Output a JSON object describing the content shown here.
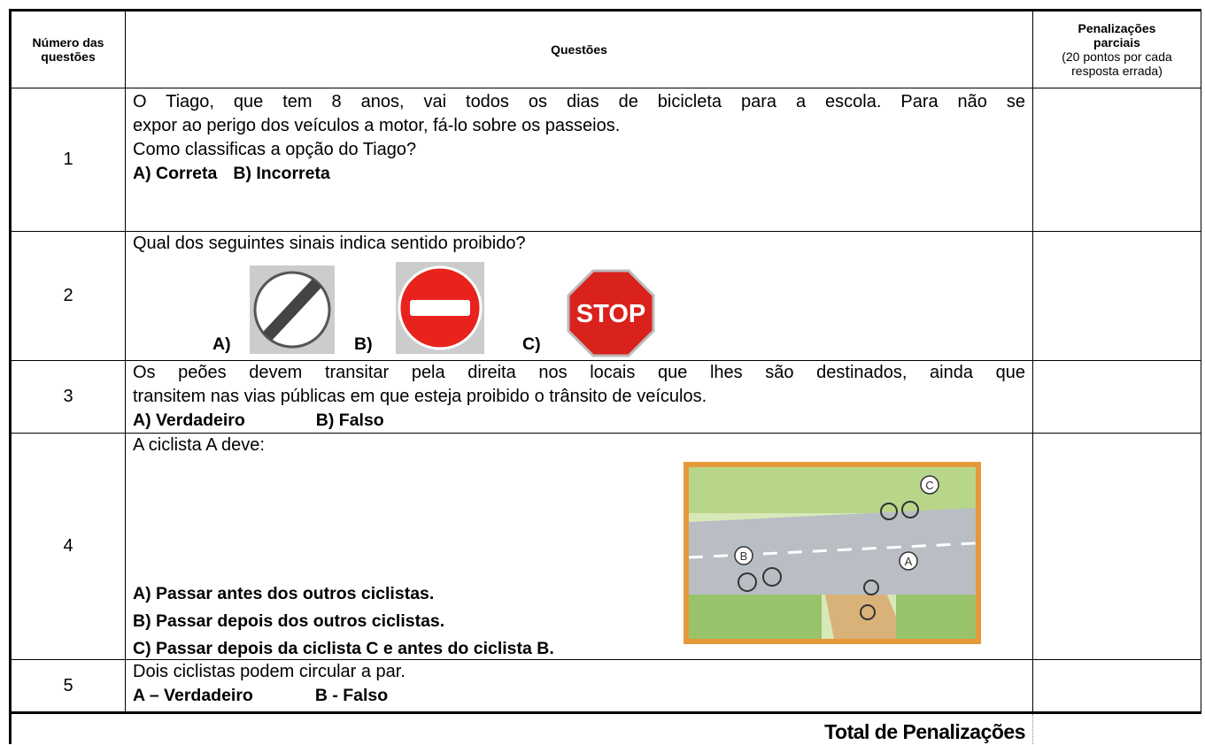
{
  "table": {
    "header": {
      "number": "Número das questões",
      "question": "Questões",
      "penalty_title": "Penalizações parciais",
      "penalty_note": "(20 pontos por cada resposta errada)"
    },
    "rows": [
      {
        "number": "1",
        "lines": [
          "O Tiago, que tem 8 anos, vai todos os dias de bicicleta para a escola. Para não se",
          "expor ao perigo dos veículos a motor, fá-lo sobre os passeios.",
          "Como classificas a opção do Tiago?"
        ],
        "answers": [
          "A) Correta",
          "B) Incorreta"
        ]
      },
      {
        "number": "2",
        "lines": [
          "Qual dos seguintes sinais indica sentido proibido?"
        ],
        "answers": [
          "A)",
          "B)",
          "C)"
        ],
        "sign_text": "STOP"
      },
      {
        "number": "3",
        "lines": [
          "Os peões devem transitar pela direita nos locais que lhes são destinados, ainda que",
          "transitem nas vias públicas em que esteja proibido o trânsito de veículos."
        ],
        "answers": [
          "A) Verdadeiro",
          "B) Falso"
        ]
      },
      {
        "number": "4",
        "lines": [
          "A ciclista A deve:"
        ],
        "answers": [
          "A) Passar antes dos outros ciclistas.",
          "B) Passar depois dos outros ciclistas.",
          "C) Passar depois da ciclista C e antes do ciclista B."
        ],
        "image_labels": [
          "A",
          "B",
          "C"
        ]
      },
      {
        "number": "5",
        "lines": [
          "Dois ciclistas podem circular a par."
        ],
        "answers": [
          "A – Verdadeiro",
          "B - Falso"
        ]
      }
    ],
    "total": "Total de Penalizações"
  }
}
